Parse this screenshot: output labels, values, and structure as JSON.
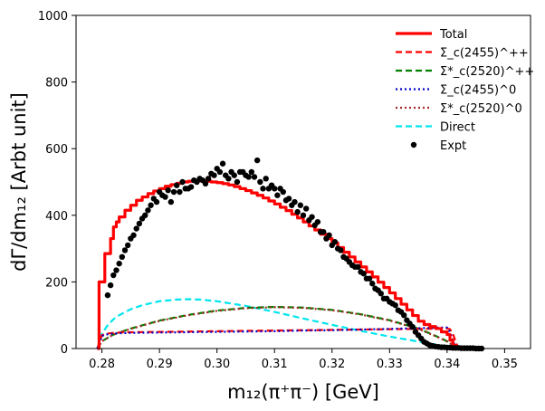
{
  "chart_data": {
    "type": "line",
    "xlabel": "m₁₂(π⁺π⁻) [GeV]",
    "ylabel": "dΓ/dm₁₂ [Arbt unit]",
    "xlim": [
      0.2755,
      0.3545
    ],
    "ylim": [
      0,
      1000
    ],
    "xticks": [
      0.28,
      0.29,
      0.3,
      0.31,
      0.32,
      0.33,
      0.34,
      0.35
    ],
    "xtick_labels": [
      "0.28",
      "0.29",
      "0.30",
      "0.31",
      "0.32",
      "0.33",
      "0.34",
      "0.35"
    ],
    "yticks": [
      0,
      200,
      400,
      600,
      800,
      1000
    ],
    "ytick_labels": [
      "0",
      "200",
      "400",
      "600",
      "800",
      "1000"
    ],
    "legend_position": "top-right",
    "series": [
      {
        "name": "Total",
        "legend": "Total",
        "style": "solid-step",
        "color": "#ff0000",
        "x": [
          0.2792,
          0.2795,
          0.28,
          0.2805,
          0.281,
          0.2815,
          0.282,
          0.2825,
          0.283,
          0.284,
          0.285,
          0.286,
          0.287,
          0.288,
          0.289,
          0.29,
          0.291,
          0.292,
          0.293,
          0.294,
          0.295,
          0.296,
          0.297,
          0.298,
          0.299,
          0.3,
          0.301,
          0.302,
          0.303,
          0.304,
          0.305,
          0.306,
          0.307,
          0.308,
          0.309,
          0.31,
          0.311,
          0.312,
          0.313,
          0.314,
          0.315,
          0.316,
          0.317,
          0.318,
          0.319,
          0.32,
          0.321,
          0.322,
          0.323,
          0.324,
          0.325,
          0.326,
          0.327,
          0.328,
          0.329,
          0.33,
          0.331,
          0.332,
          0.333,
          0.334,
          0.335,
          0.336,
          0.337,
          0.338,
          0.339,
          0.34,
          0.3405,
          0.341,
          0.3415
        ],
        "y": [
          0,
          200,
          200,
          285,
          285,
          330,
          365,
          380,
          395,
          415,
          430,
          445,
          455,
          465,
          473,
          480,
          487,
          492,
          496,
          500,
          502,
          503,
          503,
          502,
          500,
          498,
          495,
          491,
          486,
          480,
          474,
          467,
          460,
          452,
          443,
          434,
          424,
          414,
          403,
          392,
          380,
          368,
          356,
          343,
          330,
          317,
          303,
          289,
          275,
          260,
          245,
          230,
          215,
          199,
          183,
          167,
          150,
          133,
          116,
          99,
          82,
          72,
          66,
          60,
          50,
          42,
          25,
          10,
          0
        ]
      },
      {
        "name": "Σc(2455)++",
        "legend": "Σ_c(2455)^++",
        "style": "dashed",
        "color": "#ff0000",
        "x": [
          0.2792,
          0.28,
          0.281,
          0.282,
          0.283,
          0.285,
          0.29,
          0.295,
          0.3,
          0.305,
          0.31,
          0.315,
          0.32,
          0.325,
          0.33,
          0.335,
          0.34,
          0.3405,
          0.341,
          0.3415,
          0.342
        ],
        "y": [
          0,
          40,
          45,
          47,
          48,
          49,
          50,
          51,
          52,
          53,
          54,
          55,
          56,
          57,
          58,
          59,
          60,
          58,
          45,
          20,
          0
        ]
      },
      {
        "name": "Σc*(2520)++",
        "legend": "Σ*_c(2520)^++",
        "style": "dashed",
        "color": "#008000",
        "x": [
          0.2792,
          0.28,
          0.282,
          0.285,
          0.29,
          0.295,
          0.3,
          0.305,
          0.31,
          0.315,
          0.32,
          0.325,
          0.33,
          0.335,
          0.338,
          0.34,
          0.342
        ],
        "y": [
          0,
          22,
          42,
          60,
          84,
          101,
          114,
          122,
          125,
          123,
          116,
          103,
          85,
          60,
          38,
          22,
          0
        ]
      },
      {
        "name": "Σc(2455)0",
        "legend": "Σ_c(2455)^0",
        "style": "dotted",
        "color": "#0000cc",
        "x": [
          0.2792,
          0.28,
          0.281,
          0.282,
          0.283,
          0.285,
          0.29,
          0.295,
          0.3,
          0.305,
          0.31,
          0.315,
          0.32,
          0.325,
          0.33,
          0.335,
          0.339,
          0.34,
          0.3405,
          0.341,
          0.3415
        ],
        "y": [
          0,
          38,
          43,
          45,
          46,
          47,
          48,
          49,
          50,
          51,
          52,
          54,
          55,
          57,
          59,
          61,
          63,
          63,
          50,
          25,
          0
        ]
      },
      {
        "name": "Σc*(2520)0",
        "legend": "Σ*_c(2520)^0",
        "style": "dotted",
        "color": "#a52a2a",
        "x": [
          0.2792,
          0.28,
          0.282,
          0.285,
          0.29,
          0.295,
          0.3,
          0.305,
          0.31,
          0.315,
          0.32,
          0.325,
          0.33,
          0.335,
          0.338,
          0.34,
          0.342
        ],
        "y": [
          0,
          22,
          42,
          59,
          83,
          100,
          113,
          121,
          124,
          122,
          115,
          102,
          84,
          59,
          37,
          21,
          0
        ]
      },
      {
        "name": "Direct",
        "legend": "Direct",
        "style": "dashed",
        "color": "#00e5ee",
        "x": [
          0.2792,
          0.28,
          0.281,
          0.282,
          0.283,
          0.285,
          0.287,
          0.29,
          0.293,
          0.295,
          0.297,
          0.3,
          0.305,
          0.31,
          0.315,
          0.32,
          0.325,
          0.33,
          0.335,
          0.338,
          0.34,
          0.341,
          0.342
        ],
        "y": [
          0,
          45,
          70,
          88,
          100,
          118,
          130,
          142,
          147,
          148,
          147,
          142,
          128,
          110,
          90,
          71,
          53,
          36,
          21,
          12,
          6,
          3,
          0
        ]
      }
    ],
    "experiment": {
      "name": "Expt",
      "legend": "Expt",
      "color": "#000000",
      "x": [
        0.281,
        0.2815,
        0.282,
        0.2825,
        0.283,
        0.2835,
        0.284,
        0.2845,
        0.285,
        0.2855,
        0.286,
        0.2865,
        0.287,
        0.2875,
        0.288,
        0.2885,
        0.289,
        0.2895,
        0.29,
        0.2905,
        0.291,
        0.2915,
        0.292,
        0.2925,
        0.293,
        0.2935,
        0.294,
        0.2945,
        0.295,
        0.2955,
        0.296,
        0.2965,
        0.297,
        0.2975,
        0.298,
        0.2985,
        0.299,
        0.2995,
        0.3,
        0.3005,
        0.301,
        0.3015,
        0.302,
        0.3025,
        0.303,
        0.3035,
        0.304,
        0.3045,
        0.305,
        0.3055,
        0.306,
        0.3065,
        0.307,
        0.3075,
        0.308,
        0.3085,
        0.309,
        0.3095,
        0.31,
        0.3105,
        0.311,
        0.3115,
        0.312,
        0.3125,
        0.313,
        0.3135,
        0.314,
        0.3145,
        0.315,
        0.3155,
        0.316,
        0.3165,
        0.317,
        0.3175,
        0.318,
        0.3185,
        0.319,
        0.3195,
        0.32,
        0.3205,
        0.321,
        0.3215,
        0.322,
        0.3225,
        0.323,
        0.3235,
        0.324,
        0.3245,
        0.325,
        0.3255,
        0.326,
        0.3265,
        0.327,
        0.3275,
        0.328,
        0.3285,
        0.329,
        0.3295,
        0.33,
        0.3305,
        0.331,
        0.3315,
        0.332,
        0.3325,
        0.333,
        0.3335,
        0.334,
        0.3345,
        0.335,
        0.3355,
        0.336,
        0.3365,
        0.337,
        0.3375,
        0.338,
        0.3385,
        0.339,
        0.3395,
        0.34,
        0.3405,
        0.341,
        0.3415,
        0.342,
        0.3425,
        0.343,
        0.3435,
        0.344,
        0.3445,
        0.345,
        0.3455,
        0.346
      ],
      "y": [
        160,
        190,
        220,
        235,
        255,
        275,
        295,
        310,
        330,
        340,
        360,
        375,
        390,
        400,
        415,
        430,
        450,
        440,
        470,
        460,
        455,
        475,
        440,
        470,
        490,
        470,
        500,
        480,
        480,
        485,
        505,
        500,
        510,
        505,
        495,
        510,
        525,
        520,
        540,
        530,
        555,
        520,
        510,
        530,
        520,
        500,
        530,
        530,
        520,
        515,
        530,
        515,
        565,
        500,
        480,
        510,
        480,
        490,
        480,
        460,
        480,
        470,
        445,
        450,
        430,
        440,
        410,
        430,
        400,
        420,
        385,
        395,
        370,
        380,
        350,
        350,
        330,
        340,
        310,
        320,
        300,
        295,
        275,
        270,
        260,
        250,
        245,
        245,
        230,
        225,
        210,
        210,
        195,
        180,
        175,
        165,
        150,
        150,
        140,
        135,
        130,
        115,
        110,
        100,
        85,
        75,
        65,
        50,
        40,
        30,
        20,
        15,
        10,
        8,
        6,
        5,
        4,
        4,
        3,
        3,
        2,
        2,
        2,
        1,
        1,
        1,
        1,
        1,
        0,
        0,
        0
      ]
    },
    "legend_order": [
      "Total",
      "Σ_c(2455)^++",
      "Σ*_c(2520)^++",
      "Σ_c(2455)^0",
      "Σ*_c(2520)^0",
      "Direct",
      "Expt"
    ]
  }
}
